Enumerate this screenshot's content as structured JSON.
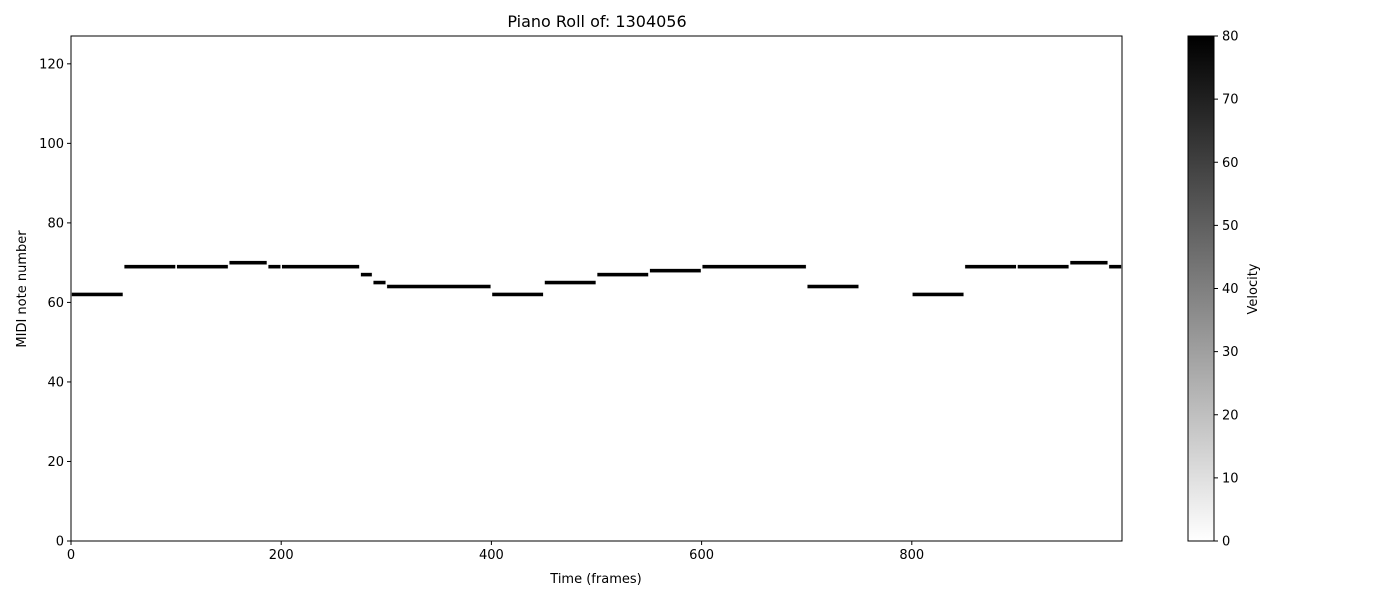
{
  "chart_data": {
    "type": "heatmap",
    "title": "Piano Roll of: 1304056",
    "xlabel": "Time (frames)",
    "ylabel": "MIDI note number",
    "xlim": [
      0,
      1000
    ],
    "ylim": [
      0,
      127
    ],
    "x_ticks": [
      0,
      200,
      400,
      600,
      800
    ],
    "y_ticks": [
      0,
      20,
      40,
      60,
      80,
      100,
      120
    ],
    "grid": false,
    "colormap": "gray_r",
    "colorbar": {
      "label": "Velocity",
      "min": 0,
      "max": 80,
      "ticks": [
        0,
        10,
        20,
        30,
        40,
        50,
        60,
        70,
        80
      ]
    },
    "notes": [
      {
        "pitch": 62,
        "start": 0,
        "end": 50,
        "velocity": 80
      },
      {
        "pitch": 69,
        "start": 50,
        "end": 100,
        "velocity": 80
      },
      {
        "pitch": 69,
        "start": 100,
        "end": 150,
        "velocity": 80
      },
      {
        "pitch": 70,
        "start": 150,
        "end": 187,
        "velocity": 80
      },
      {
        "pitch": 69,
        "start": 187,
        "end": 200,
        "velocity": 80
      },
      {
        "pitch": 69,
        "start": 200,
        "end": 275,
        "velocity": 80
      },
      {
        "pitch": 67,
        "start": 275,
        "end": 287,
        "velocity": 80
      },
      {
        "pitch": 65,
        "start": 287,
        "end": 300,
        "velocity": 80
      },
      {
        "pitch": 64,
        "start": 300,
        "end": 400,
        "velocity": 80
      },
      {
        "pitch": 62,
        "start": 400,
        "end": 450,
        "velocity": 80
      },
      {
        "pitch": 65,
        "start": 450,
        "end": 500,
        "velocity": 80
      },
      {
        "pitch": 67,
        "start": 500,
        "end": 550,
        "velocity": 80
      },
      {
        "pitch": 68,
        "start": 550,
        "end": 600,
        "velocity": 80
      },
      {
        "pitch": 69,
        "start": 600,
        "end": 700,
        "velocity": 80
      },
      {
        "pitch": 64,
        "start": 700,
        "end": 750,
        "velocity": 80
      },
      {
        "pitch": 62,
        "start": 800,
        "end": 850,
        "velocity": 80
      },
      {
        "pitch": 69,
        "start": 850,
        "end": 900,
        "velocity": 80
      },
      {
        "pitch": 69,
        "start": 900,
        "end": 950,
        "velocity": 80
      },
      {
        "pitch": 70,
        "start": 950,
        "end": 987,
        "velocity": 80
      },
      {
        "pitch": 69,
        "start": 987,
        "end": 1000,
        "velocity": 80
      }
    ]
  }
}
